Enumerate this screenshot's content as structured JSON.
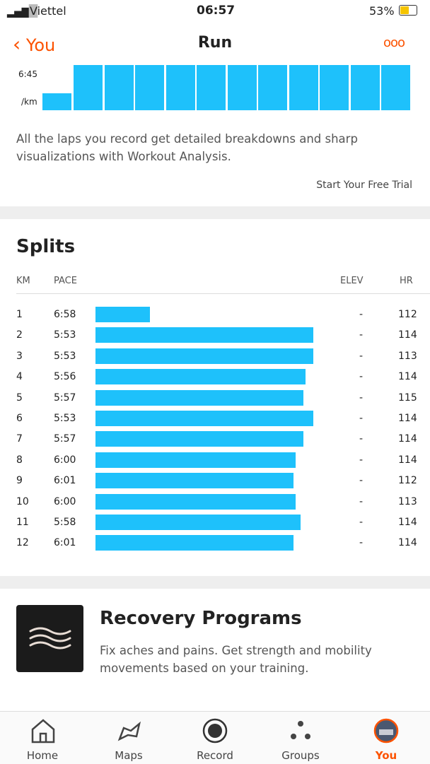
{
  "status_bar": {
    "carrier": "Viettel",
    "time": "06:57",
    "battery": "53%"
  },
  "header": {
    "back": "You",
    "title": "Run"
  },
  "laps": {
    "axis_top": "6:45",
    "axis_unit": "/km",
    "description": "All the laps you record get detailed breakdowns and sharp visualizations with Workout Analysis.",
    "cta": "Start Your Free Trial"
  },
  "splits": {
    "title": "Splits",
    "columns": [
      "KM",
      "PACE",
      "ELEV",
      "HR"
    ],
    "rows": [
      {
        "km": 1,
        "pace": "6:58",
        "elev": "-",
        "hr": 112
      },
      {
        "km": 2,
        "pace": "5:53",
        "elev": "-",
        "hr": 114
      },
      {
        "km": 3,
        "pace": "5:53",
        "elev": "-",
        "hr": 113
      },
      {
        "km": 4,
        "pace": "5:56",
        "elev": "-",
        "hr": 114
      },
      {
        "km": 5,
        "pace": "5:57",
        "elev": "-",
        "hr": 115
      },
      {
        "km": 6,
        "pace": "5:53",
        "elev": "-",
        "hr": 114
      },
      {
        "km": 7,
        "pace": "5:57",
        "elev": "-",
        "hr": 114
      },
      {
        "km": 8,
        "pace": "6:00",
        "elev": "-",
        "hr": 114
      },
      {
        "km": 9,
        "pace": "6:01",
        "elev": "-",
        "hr": 112
      },
      {
        "km": 10,
        "pace": "6:00",
        "elev": "-",
        "hr": 113
      },
      {
        "km": 11,
        "pace": "5:58",
        "elev": "-",
        "hr": 114
      },
      {
        "km": 12,
        "pace": "6:01",
        "elev": "-",
        "hr": 114
      }
    ]
  },
  "recovery": {
    "title": "Recovery Programs",
    "description": "Fix aches and pains. Get strength and mobility movements based on your training."
  },
  "nav": {
    "items": [
      "Home",
      "Maps",
      "Record",
      "Groups",
      "You"
    ]
  }
}
